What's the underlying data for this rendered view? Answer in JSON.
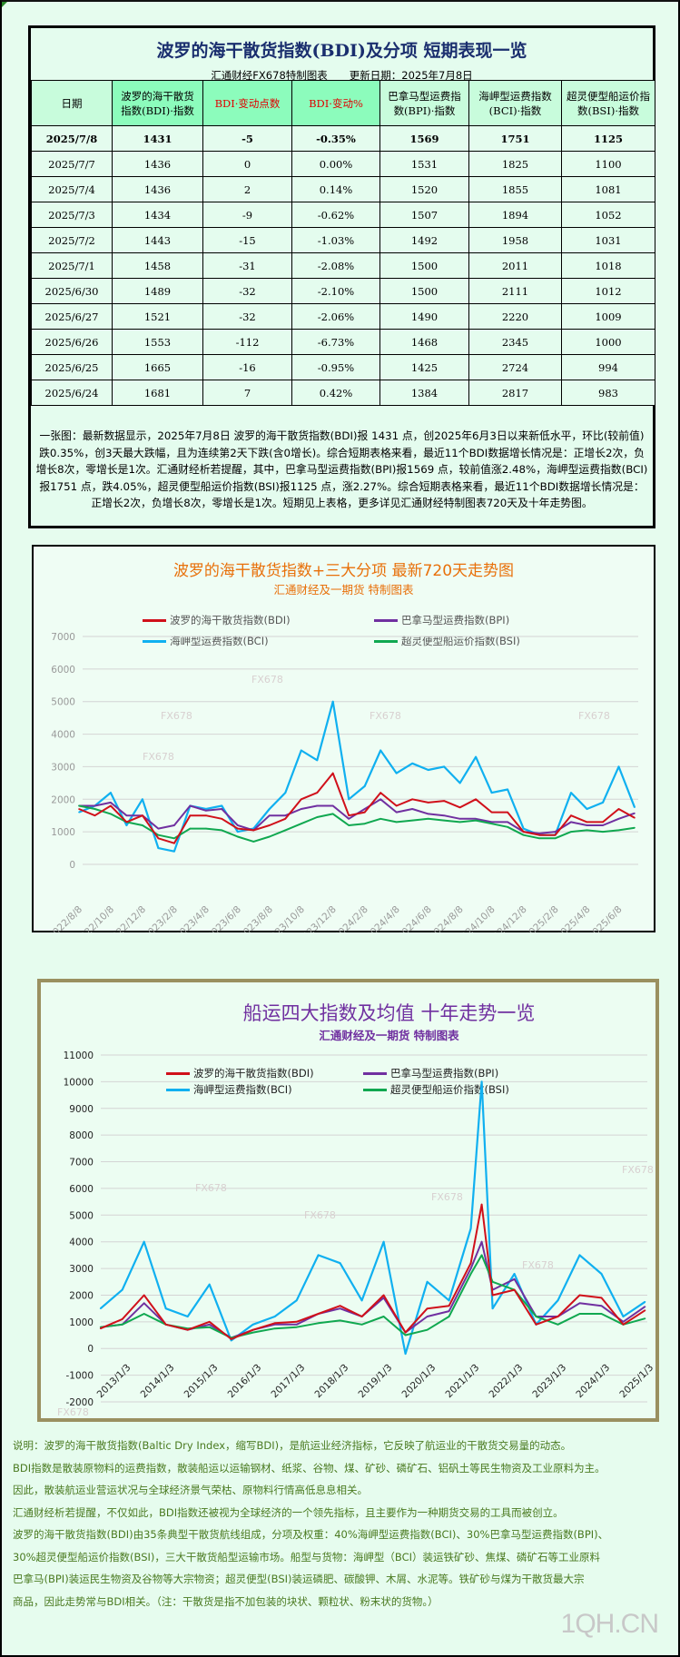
{
  "table_panel": {
    "title": "波罗的海干散货指数(BDI)及分项 短期表现一览",
    "source": "汇通财经FX678特制图表",
    "updated": "更新日期：2025年7月8日",
    "headers": [
      "日期",
      "波罗的海干散货指数(BDI)·指数",
      "BDI·变动点数",
      "BDI·变动%",
      "巴拿马型运费指数(BPI)·指数",
      "海岬型运费指数(BCI)·指数",
      "超灵便型船运价指数(BSI)·指数"
    ],
    "rows": [
      [
        "2025/7/8",
        "1431",
        "-5",
        "-0.35%",
        "1569",
        "1751",
        "1125"
      ],
      [
        "2025/7/7",
        "1436",
        "0",
        "0.00%",
        "1531",
        "1825",
        "1100"
      ],
      [
        "2025/7/4",
        "1436",
        "2",
        "0.14%",
        "1520",
        "1855",
        "1081"
      ],
      [
        "2025/7/3",
        "1434",
        "-9",
        "-0.62%",
        "1507",
        "1894",
        "1052"
      ],
      [
        "2025/7/2",
        "1443",
        "-15",
        "-1.03%",
        "1492",
        "1958",
        "1031"
      ],
      [
        "2025/7/1",
        "1458",
        "-31",
        "-2.08%",
        "1500",
        "2011",
        "1018"
      ],
      [
        "2025/6/30",
        "1489",
        "-32",
        "-2.10%",
        "1500",
        "2111",
        "1012"
      ],
      [
        "2025/6/27",
        "1521",
        "-32",
        "-2.06%",
        "1490",
        "2220",
        "1009"
      ],
      [
        "2025/6/26",
        "1553",
        "-112",
        "-6.73%",
        "1468",
        "2345",
        "1000"
      ],
      [
        "2025/6/25",
        "1665",
        "-16",
        "-0.95%",
        "1425",
        "2724",
        "994"
      ],
      [
        "2025/6/24",
        "1681",
        "7",
        "0.42%",
        "1384",
        "2817",
        "983"
      ]
    ],
    "summary": "一张图：最新数据显示，2025年7月8日 波罗的海干散货指数(BDI)报 1431 点，创2025年6月3日以来新低水平，环比(较前值)跌0.35%，创3天最大跌幅，且为连续第2天下跌(含0增长)。综合短期表格来看，最近11个BDI数据增长情况是：正增长2次，负增长8次，零增长是1次。汇通财经析若提醒，其中，巴拿马型运费指数(BPI)报1569 点，较前值涨2.48%，海岬型运费指数(BCI)报1751 点，跌4.05%，超灵便型船运价指数(BSI)报1125 点，涨2.27%。综合短期表格来看，最近11个BDI数据增长情况是：正增长2次，负增长8次，零增长是1次。短期见上表格，更多详见汇通财经特制图表720天及十年走势图。"
  },
  "colors": {
    "BDI": "#d0101a",
    "BPI": "#7030a0",
    "BCI": "#10b0f0",
    "BSI": "#10a850",
    "title_navy": "#1a2e6e",
    "chart1_title": "#e8700a",
    "chart2_title": "#7030a0",
    "desc_text": "#4a7a20"
  },
  "chart_data": [
    {
      "type": "line",
      "title": "波罗的海干散货指数+三大分项  最新720天走势图",
      "subtitle": "汇通财经及一期货  特制图表",
      "ylim": [
        0,
        7000
      ],
      "yticks": [
        "0",
        "1000",
        "2000",
        "3000",
        "4000",
        "5000",
        "6000",
        "7000"
      ],
      "xtick_labels": [
        "2022/8/8",
        "2022/10/8",
        "2022/12/8",
        "2023/2/8",
        "2023/4/8",
        "2023/6/8",
        "2023/8/8",
        "2023/10/8",
        "2023/12/8",
        "2024/2/8",
        "2024/4/8",
        "2024/6/8",
        "2024/8/8",
        "2024/10/8",
        "2024/12/8",
        "2025/2/8",
        "2025/4/8",
        "2025/6/8"
      ],
      "grid": true,
      "legend": "top",
      "x": [
        "2022/8",
        "2022/9",
        "2022/10",
        "2022/11",
        "2022/12",
        "2023/1",
        "2023/2",
        "2023/3",
        "2023/4",
        "2023/5",
        "2023/6",
        "2023/7",
        "2023/8",
        "2023/9",
        "2023/10",
        "2023/11",
        "2023/12",
        "2024/1",
        "2024/2",
        "2024/3",
        "2024/4",
        "2024/5",
        "2024/6",
        "2024/7",
        "2024/8",
        "2024/9",
        "2024/10",
        "2024/11",
        "2024/12",
        "2025/1",
        "2025/2",
        "2025/3",
        "2025/4",
        "2025/5",
        "2025/6",
        "2025/7"
      ],
      "series": [
        {
          "name": "海岬型运费指数(BCI)",
          "key": "BCI",
          "values": [
            1600,
            1800,
            2200,
            1200,
            2000,
            500,
            400,
            1800,
            1700,
            1800,
            1000,
            1100,
            1700,
            2200,
            3500,
            3200,
            5000,
            2000,
            2400,
            3500,
            2800,
            3100,
            2900,
            3000,
            2500,
            3300,
            2200,
            2300,
            1100,
            900,
            900,
            2200,
            1700,
            1900,
            3000,
            1751
          ]
        },
        {
          "name": "巴拿马型运费指数(BPI)",
          "key": "BPI",
          "values": [
            1800,
            1800,
            1900,
            1500,
            1500,
            1100,
            1200,
            1800,
            1650,
            1700,
            1200,
            1050,
            1500,
            1500,
            1700,
            1800,
            1800,
            1400,
            1700,
            2000,
            1600,
            1700,
            1550,
            1500,
            1400,
            1400,
            1300,
            1300,
            1000,
            950,
            1000,
            1300,
            1200,
            1200,
            1400,
            1569
          ]
        },
        {
          "name": "超灵便型船运价指数(BSI)",
          "key": "BSI",
          "values": [
            1800,
            1700,
            1550,
            1300,
            1200,
            900,
            800,
            1100,
            1100,
            1050,
            850,
            700,
            850,
            1050,
            1250,
            1450,
            1550,
            1200,
            1250,
            1400,
            1300,
            1350,
            1400,
            1350,
            1300,
            1350,
            1250,
            1150,
            900,
            800,
            800,
            1000,
            1050,
            1000,
            1050,
            1125
          ]
        },
        {
          "name": "波罗的海干散货指数(BDI)",
          "key": "BDI",
          "values": [
            1700,
            1500,
            1800,
            1300,
            1500,
            800,
            650,
            1500,
            1500,
            1400,
            1100,
            1050,
            1200,
            1400,
            2000,
            2200,
            2800,
            1500,
            1600,
            2200,
            1800,
            2000,
            1900,
            1950,
            1750,
            2000,
            1600,
            1600,
            1000,
            900,
            900,
            1500,
            1300,
            1300,
            1700,
            1431
          ]
        }
      ]
    },
    {
      "type": "line",
      "title": "船运四大指数及均值 十年走势一览",
      "subtitle": "汇通财经及一期货 特制图表",
      "ylim": [
        -2000,
        11000
      ],
      "yticks": [
        "-2000",
        "-1000",
        "0",
        "1000",
        "2000",
        "3000",
        "4000",
        "5000",
        "6000",
        "7000",
        "8000",
        "9000",
        "10000",
        "11000"
      ],
      "xtick_labels": [
        "2013/1/3",
        "2014/1/3",
        "2015/1/3",
        "2016/1/3",
        "2017/1/3",
        "2018/1/3",
        "2019/1/3",
        "2020/1/3",
        "2021/1/3",
        "2022/1/3",
        "2023/1/3",
        "2024/1/3",
        "2025/1/3"
      ],
      "grid": true,
      "legend": "top",
      "x": [
        "2013/1",
        "2013/7",
        "2014/1",
        "2014/7",
        "2015/1",
        "2015/7",
        "2016/1",
        "2016/7",
        "2017/1",
        "2017/7",
        "2018/1",
        "2018/7",
        "2019/1",
        "2019/7",
        "2020/1",
        "2020/7",
        "2021/1",
        "2021/7",
        "2021/10",
        "2022/1",
        "2022/7",
        "2023/1",
        "2023/7",
        "2024/1",
        "2024/7",
        "2025/1",
        "2025/7"
      ],
      "series": [
        {
          "name": "海岬型运费指数(BCI)",
          "key": "BCI",
          "values": [
            1500,
            2200,
            4000,
            1500,
            1200,
            2400,
            300,
            900,
            1200,
            1800,
            3500,
            3200,
            1800,
            4000,
            -200,
            2500,
            1800,
            4500,
            10000,
            1500,
            2800,
            900,
            1800,
            3500,
            2800,
            1200,
            1751
          ]
        },
        {
          "name": "巴拿马型运费指数(BPI)",
          "key": "BPI",
          "values": [
            800,
            900,
            1700,
            900,
            700,
            900,
            400,
            700,
            900,
            900,
            1300,
            1500,
            1200,
            1900,
            600,
            1200,
            1400,
            3000,
            4000,
            2200,
            2600,
            1200,
            1200,
            1700,
            1600,
            1000,
            1569
          ]
        },
        {
          "name": "超灵便型船运价指数(BSI)",
          "key": "BSI",
          "values": [
            800,
            900,
            1300,
            900,
            750,
            800,
            400,
            600,
            750,
            800,
            950,
            1050,
            900,
            1200,
            500,
            700,
            1200,
            2800,
            3500,
            2500,
            2200,
            1200,
            900,
            1300,
            1300,
            900,
            1125
          ]
        },
        {
          "name": "波罗的海干散货指数(BDI)",
          "key": "BDI",
          "values": [
            750,
            1100,
            2000,
            900,
            700,
            1000,
            350,
            700,
            950,
            1000,
            1300,
            1600,
            1200,
            2000,
            600,
            1500,
            1600,
            3200,
            5400,
            2000,
            2200,
            900,
            1200,
            2000,
            1900,
            900,
            1431
          ]
        }
      ]
    }
  ],
  "watermarks": {
    "chart": "FX678",
    "site": "1QH.CN"
  },
  "description": [
    "说明：波罗的海干散货指数(Baltic Dry Index，缩写BDI)，是航运业经济指标，它反映了航运业的干散货交易量的动态。",
    "BDI指数是散装原物料的运费指数，散装船运以运输钢材、纸浆、谷物、煤、矿砂、磷矿石、铝矾土等民生物资及工业原料为主。",
    "因此，散装航运业营运状况与全球经济景气荣枯、原物料行情高低息息相关。",
    "汇通财经析若提醒，不仅如此，BDI指数还被视为全球经济的一个领先指标，且主要作为一种期货交易的工具而被创立。",
    "波罗的海干散货指数(BDI)由35条典型干散货航线组成，分项及权重：40%海岬型运费指数(BCI)、30%巴拿马型运费指数(BPI)、",
    "30%超灵便型船运价指数(BSI)，三大干散货船型运输市场。船型与货物：海岬型（BCI）装运铁矿砂、焦煤、磷矿石等工业原料",
    "巴拿马(BPI)装运民生物资及谷物等大宗物资；超灵便型(BSI)装运磷肥、碳酸钾、木屑、水泥等。铁矿砂与煤为干散货最大宗",
    "商品，因此走势常与BDI相关。（注：干散货是指不加包装的块状、颗粒状、粉末状的货物。）"
  ]
}
